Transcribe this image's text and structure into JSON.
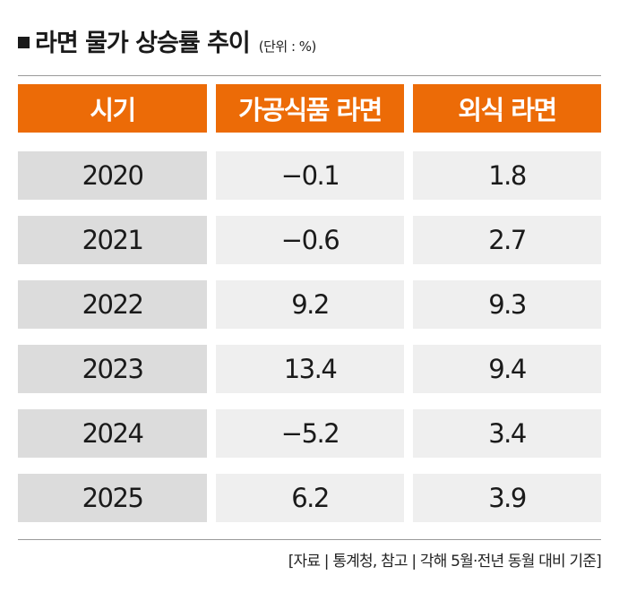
{
  "title": "라면 물가 상승률 추이",
  "unit": "(단위 : %)",
  "source": "[자료 | 통계청, 참고 | 각해 5월·전년 동월 대비 기준]",
  "colors": {
    "header_bg": "#ec6b07",
    "year_bg": "#dcdcdc",
    "value_bg": "#efefef"
  },
  "chart_data": {
    "type": "table",
    "columns": [
      "시기",
      "가공식품 라면",
      "외식 라면"
    ],
    "rows": [
      [
        "2020",
        "−0.1",
        "1.8"
      ],
      [
        "2021",
        "−0.6",
        "2.7"
      ],
      [
        "2022",
        "9.2",
        "9.3"
      ],
      [
        "2023",
        "13.4",
        "9.4"
      ],
      [
        "2024",
        "−5.2",
        "3.4"
      ],
      [
        "2025",
        "6.2",
        "3.9"
      ]
    ]
  }
}
